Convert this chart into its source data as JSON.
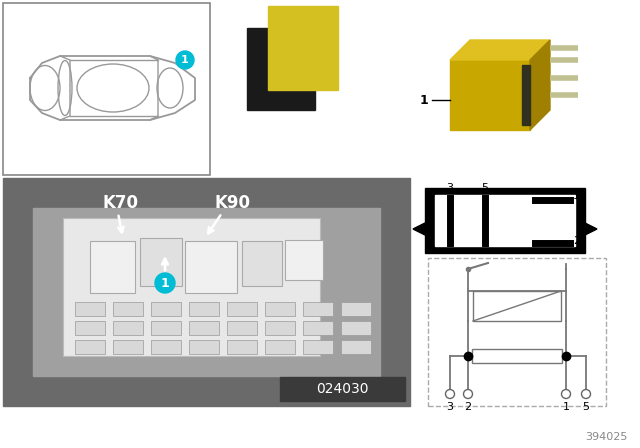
{
  "bg_color": "#ffffff",
  "badge_color": "#00bcd4",
  "yellow_relay": "#d4c020",
  "black_sq": "#1a1a1a",
  "photo_bg": "#787878",
  "photo_bg2": "#606060",
  "car_box_edge": "#888888",
  "car_line_color": "#999999",
  "k70_label": "K70",
  "k90_label": "K90",
  "wm_photo": "024030",
  "wm_diagram": "394025",
  "circuit_color": "#777777",
  "pin_box_black": "#111111",
  "relay_yellow": "#d4b800",
  "relay_dark": "#b89800",
  "pin_silver": "#c8c8a0"
}
